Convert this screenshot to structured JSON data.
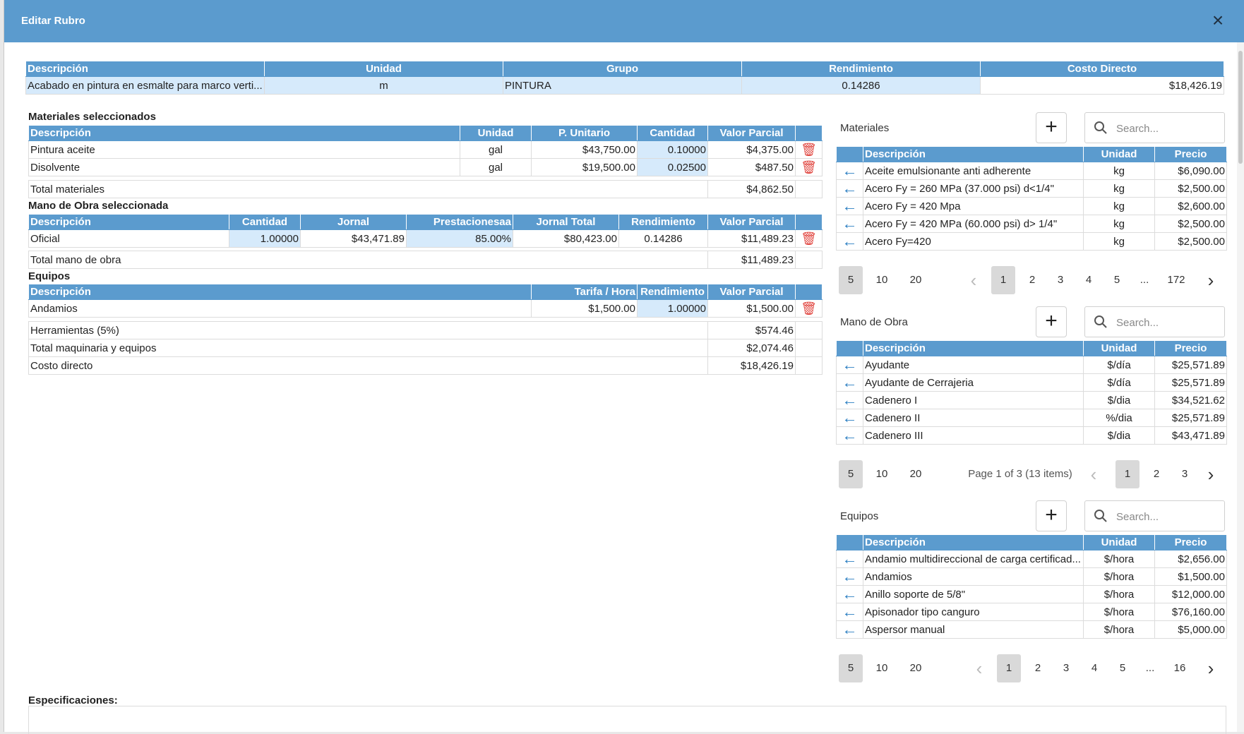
{
  "dialog": {
    "title": "Editar Rubro",
    "close": "×"
  },
  "rubro": {
    "headers": [
      "Descripción",
      "Unidad",
      "Grupo",
      "Rendimiento",
      "Costo Directo"
    ],
    "row": [
      "Acabado en pintura en esmalte para marco verti...",
      "m",
      "PINTURA",
      "0.14286",
      "$18,426.19"
    ]
  },
  "materiales_sel": {
    "label": "Materiales seleccionados",
    "headers": [
      "Descripción",
      "Unidad",
      "P. Unitario",
      "Cantidad",
      "Valor Parcial"
    ],
    "rows": [
      [
        "Pintura aceite",
        "gal",
        "$43,750.00",
        "0.10000",
        "$4,375.00"
      ],
      [
        "Disolvente",
        "gal",
        "$19,500.00",
        "0.02500",
        "$487.50"
      ]
    ],
    "total_label": "Total materiales",
    "total_value": "$4,862.50"
  },
  "mano_sel": {
    "label": "Mano de Obra seleccionada",
    "headers": [
      "Descripción",
      "Cantidad",
      "Jornal",
      "Prestacionesaa",
      "Jornal Total",
      "Rendimiento",
      "Valor Parcial"
    ],
    "rows": [
      [
        "Oficial",
        "1.00000",
        "$43,471.89",
        "85.00%",
        "$80,423.00",
        "0.14286",
        "$11,489.23"
      ]
    ],
    "total_label": "Total mano de obra",
    "total_value": "$11,489.23"
  },
  "equipos_sel": {
    "label": "Equipos",
    "headers": [
      "Descripción",
      "Tarifa / Hora",
      "Rendimiento",
      "Valor Parcial"
    ],
    "rows": [
      [
        "Andamios",
        "$1,500.00",
        "1.00000",
        "$1,500.00"
      ]
    ],
    "summary": [
      [
        "Herramientas (5%)",
        "$574.46"
      ],
      [
        "Total maquinaria y equipos",
        "$2,074.46"
      ],
      [
        "Costo directo",
        "$18,426.19"
      ]
    ]
  },
  "catalogs": {
    "search_placeholder": "Search...",
    "headers": [
      "Descripción",
      "Unidad",
      "Precio"
    ],
    "materiales": {
      "title": "Materiales",
      "rows": [
        [
          "Aceite emulsionante anti adherente",
          "kg",
          "$6,090.00"
        ],
        [
          "Acero Fy = 260 MPa (37.000 psi) d<1/4\"",
          "kg",
          "$2,500.00"
        ],
        [
          "Acero Fy = 420 Mpa",
          "kg",
          "$2,600.00"
        ],
        [
          "Acero Fy = 420 MPa (60.000 psi) d> 1/4\"",
          "kg",
          "$2,500.00"
        ],
        [
          "Acero Fy=420",
          "kg",
          "$2,500.00"
        ]
      ],
      "sizes": [
        "5",
        "10",
        "20"
      ],
      "pages": [
        "1",
        "2",
        "3",
        "4",
        "5",
        "...",
        "172"
      ]
    },
    "mano": {
      "title": "Mano de Obra",
      "rows": [
        [
          "Ayudante",
          "$/día",
          "$25,571.89"
        ],
        [
          "Ayudante de Cerrajeria",
          "$/día",
          "$25,571.89"
        ],
        [
          "Cadenero I",
          "$/dia",
          "$34,521.62"
        ],
        [
          "Cadenero II",
          "%/dia",
          "$25,571.89"
        ],
        [
          "Cadenero III",
          "$/dia",
          "$43,471.89"
        ]
      ],
      "sizes": [
        "5",
        "10",
        "20"
      ],
      "info": "Page 1 of 3 (13 items)",
      "pages": [
        "1",
        "2",
        "3"
      ]
    },
    "equipos": {
      "title": "Equipos",
      "rows": [
        [
          "Andamio multidireccional de carga certificad...",
          "$/hora",
          "$2,656.00"
        ],
        [
          "Andamios",
          "$/hora",
          "$1,500.00"
        ],
        [
          "Anillo soporte de 5/8\"",
          "$/hora",
          "$12,000.00"
        ],
        [
          "Apisonador tipo canguro",
          "$/hora",
          "$76,160.00"
        ],
        [
          "Aspersor manual",
          "$/hora",
          "$5,000.00"
        ]
      ],
      "sizes": [
        "5",
        "10",
        "20"
      ],
      "pages": [
        "1",
        "2",
        "3",
        "4",
        "5",
        "...",
        "16"
      ]
    }
  },
  "especificaciones": {
    "label": "Especificaciones:"
  },
  "icons": {
    "trash": "trash-icon",
    "arrow": "arrow-left-icon",
    "search": "search-icon",
    "plus": "plus-icon"
  },
  "colors": {
    "header": "#5b9bce",
    "highlight": "#d6eafb",
    "trash": "#e0443e",
    "arrow": "#2c7fc2"
  }
}
